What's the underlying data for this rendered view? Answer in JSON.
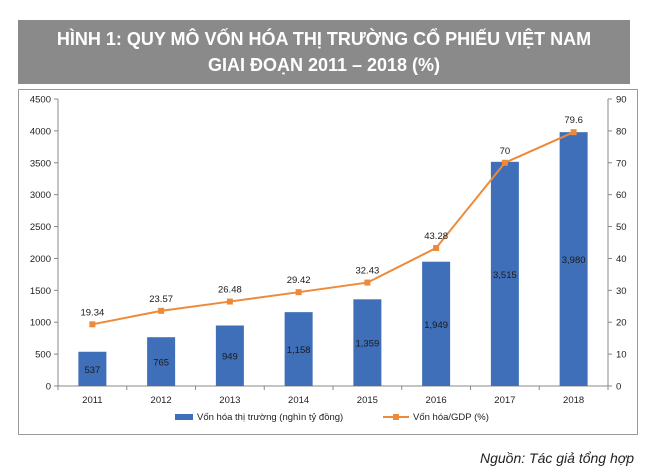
{
  "title": {
    "line1": "HÌNH 1: QUY MÔ VỐN HÓA THỊ TRƯỜNG CỔ PHIẾU VIỆT NAM",
    "line2": "GIAI ĐOẠN 2011 – 2018 (%)"
  },
  "source": "Nguồn: Tác giả tổng hợp",
  "colors": {
    "bar": "#3f6fb8",
    "line": "#ed8a3a",
    "title_bg": "#8a8a8a"
  },
  "chart_data": {
    "type": "bar",
    "categories": [
      "2011",
      "2012",
      "2013",
      "2014",
      "2015",
      "2016",
      "2017",
      "2018"
    ],
    "series": [
      {
        "name": "Vốn hóa thị trường (nghìn tỷ đồng)",
        "type": "bar",
        "axis": "left",
        "values": [
          537,
          765,
          949,
          1158,
          1359,
          1949,
          3515,
          3980
        ],
        "labels": [
          "537",
          "765",
          "949",
          "1,158",
          "1,359",
          "1,949",
          "3,515",
          "3,980"
        ]
      },
      {
        "name": "Vốn hóa/GDP (%)",
        "type": "line",
        "axis": "right",
        "values": [
          19.34,
          23.57,
          26.48,
          29.42,
          32.43,
          43.28,
          70,
          79.6
        ],
        "labels": [
          "19.34",
          "23.57",
          "26.48",
          "29.42",
          "32.43",
          "43.28",
          "70",
          "79.6"
        ]
      }
    ],
    "y_left": {
      "min": 0,
      "max": 4500,
      "ticks": [
        "0",
        "500",
        "1000",
        "1500",
        "2000",
        "2500",
        "3000",
        "3500",
        "4000",
        "4500"
      ]
    },
    "y_right": {
      "min": 0,
      "max": 90,
      "ticks": [
        "0",
        "10",
        "20",
        "30",
        "40",
        "50",
        "60",
        "70",
        "80",
        "90"
      ]
    },
    "grid": false,
    "legend": "bottom"
  }
}
